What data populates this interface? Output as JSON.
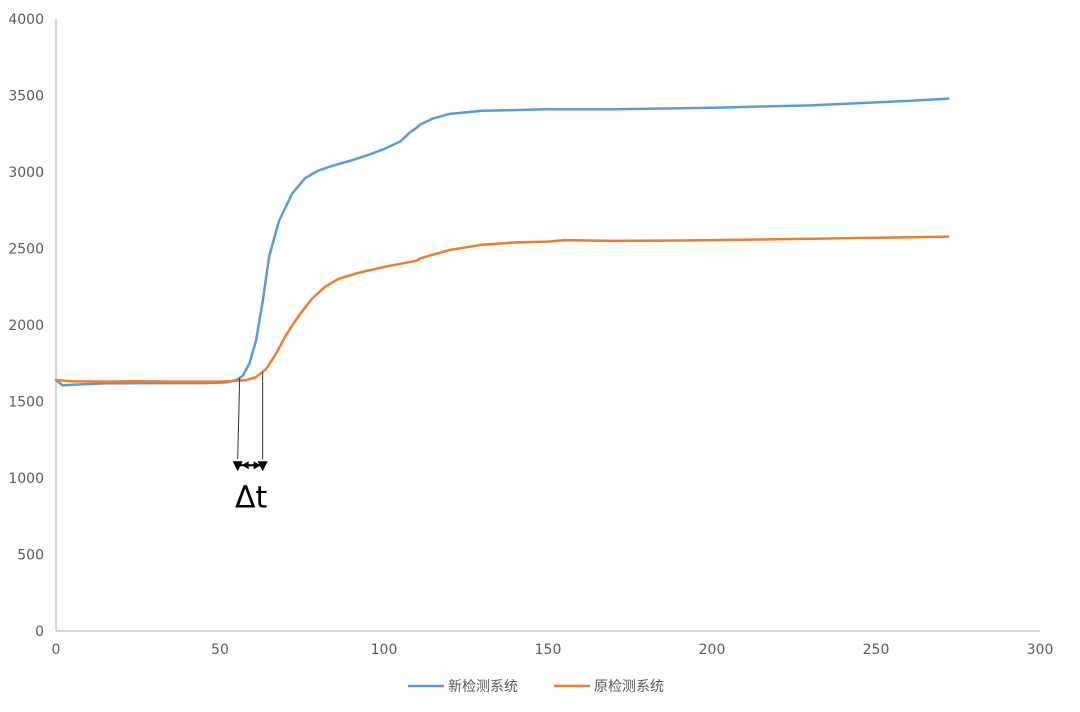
{
  "chart_data": {
    "type": "line",
    "xlim": [
      0,
      300
    ],
    "ylim": [
      0,
      4000
    ],
    "x_ticks": [
      "0",
      "50",
      "100",
      "150",
      "200",
      "250",
      "300"
    ],
    "y_ticks": [
      "0",
      "500",
      "1000",
      "1500",
      "2000",
      "2500",
      "3000",
      "3500",
      "4000"
    ],
    "grid": false,
    "legend_position": "bottom",
    "series": [
      {
        "name": "新检测系统",
        "color": "#5B9BD5",
        "points": [
          [
            0,
            1640
          ],
          [
            2,
            1605
          ],
          [
            5,
            1610
          ],
          [
            15,
            1618
          ],
          [
            30,
            1620
          ],
          [
            45,
            1620
          ],
          [
            52,
            1625
          ],
          [
            55,
            1640
          ],
          [
            57,
            1670
          ],
          [
            59,
            1750
          ],
          [
            61,
            1900
          ],
          [
            63,
            2150
          ],
          [
            65,
            2450
          ],
          [
            68,
            2680
          ],
          [
            72,
            2860
          ],
          [
            76,
            2960
          ],
          [
            80,
            3010
          ],
          [
            85,
            3045
          ],
          [
            90,
            3075
          ],
          [
            95,
            3110
          ],
          [
            100,
            3150
          ],
          [
            105,
            3200
          ],
          [
            108,
            3260
          ],
          [
            110,
            3290
          ],
          [
            111,
            3310
          ],
          [
            115,
            3350
          ],
          [
            120,
            3380
          ],
          [
            130,
            3400
          ],
          [
            150,
            3410
          ],
          [
            170,
            3410
          ],
          [
            200,
            3420
          ],
          [
            230,
            3435
          ],
          [
            260,
            3465
          ],
          [
            272,
            3480
          ]
        ]
      },
      {
        "name": "原检测系统",
        "color": "#ED7D31",
        "points": [
          [
            0,
            1640
          ],
          [
            5,
            1632
          ],
          [
            15,
            1630
          ],
          [
            25,
            1632
          ],
          [
            35,
            1630
          ],
          [
            50,
            1630
          ],
          [
            58,
            1640
          ],
          [
            61,
            1660
          ],
          [
            64,
            1710
          ],
          [
            67,
            1810
          ],
          [
            70,
            1930
          ],
          [
            74,
            2060
          ],
          [
            78,
            2170
          ],
          [
            82,
            2250
          ],
          [
            86,
            2300
          ],
          [
            92,
            2340
          ],
          [
            100,
            2380
          ],
          [
            105,
            2400
          ],
          [
            110,
            2420
          ],
          [
            111,
            2435
          ],
          [
            115,
            2460
          ],
          [
            120,
            2490
          ],
          [
            130,
            2525
          ],
          [
            140,
            2540
          ],
          [
            150,
            2545
          ],
          [
            155,
            2555
          ],
          [
            170,
            2550
          ],
          [
            190,
            2552
          ],
          [
            220,
            2560
          ],
          [
            250,
            2570
          ],
          [
            272,
            2578
          ]
        ]
      }
    ],
    "annotation": {
      "label": "Δt",
      "x_start": 56,
      "x_end": 63,
      "y_arrow": 1070
    }
  }
}
